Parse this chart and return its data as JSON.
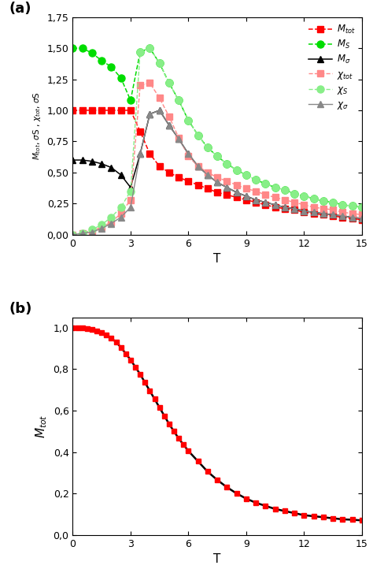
{
  "title_a": "(a)",
  "title_b": "(b)",
  "xlabel": "T",
  "xlim": [
    0,
    15
  ],
  "ylim_a": [
    0,
    1.75
  ],
  "ylim_b": [
    0,
    1.05
  ],
  "yticks_a": [
    0.0,
    0.25,
    0.5,
    0.75,
    1.0,
    1.25,
    1.5,
    1.75
  ],
  "ytick_labels_a": [
    "0,00",
    "0,25",
    "0,50",
    "0,75",
    "1,00",
    "1,25",
    "1,50",
    "1,75"
  ],
  "yticks_b": [
    0.0,
    0.2,
    0.4,
    0.6,
    0.8,
    1.0
  ],
  "ytick_labels_b": [
    "0,0",
    "0,2",
    "0,4",
    "0,6",
    "0,8",
    "1,0"
  ],
  "xticks": [
    0,
    3,
    6,
    9,
    12,
    15
  ],
  "background_color": "#ffffff",
  "M_tot_T": [
    0.0,
    0.5,
    1.0,
    1.5,
    2.0,
    2.5,
    3.0,
    3.5,
    4.0,
    4.5,
    5.0,
    5.5,
    6.0,
    6.5,
    7.0,
    7.5,
    8.0,
    8.5,
    9.0,
    9.5,
    10.0,
    10.5,
    11.0,
    11.5,
    12.0,
    12.5,
    13.0,
    13.5,
    14.0,
    14.5,
    15.0
  ],
  "M_tot_V": [
    1.0,
    1.0,
    1.0,
    1.0,
    1.0,
    1.0,
    1.0,
    0.83,
    0.65,
    0.55,
    0.5,
    0.46,
    0.43,
    0.4,
    0.37,
    0.34,
    0.32,
    0.3,
    0.28,
    0.26,
    0.24,
    0.22,
    0.21,
    0.2,
    0.18,
    0.17,
    0.16,
    0.15,
    0.14,
    0.13,
    0.12
  ],
  "M_S_T": [
    0.0,
    0.5,
    1.0,
    1.5,
    2.0,
    2.5,
    3.0,
    3.5,
    4.0,
    4.5,
    5.0,
    5.5,
    6.0,
    6.5,
    7.0,
    7.5,
    8.0,
    8.5,
    9.0,
    9.5,
    10.0,
    10.5,
    11.0,
    11.5,
    12.0,
    12.5,
    13.0,
    13.5,
    14.0,
    14.5,
    15.0
  ],
  "M_S_V": [
    1.5,
    1.5,
    1.46,
    1.4,
    1.35,
    1.26,
    1.08,
    1.47,
    1.5,
    1.38,
    1.22,
    1.08,
    0.92,
    0.8,
    0.7,
    0.63,
    0.57,
    0.52,
    0.48,
    0.44,
    0.41,
    0.38,
    0.36,
    0.33,
    0.31,
    0.29,
    0.27,
    0.26,
    0.24,
    0.23,
    0.22
  ],
  "M_sigma_T": [
    0.0,
    0.5,
    1.0,
    1.5,
    2.0,
    2.5,
    3.0,
    3.5,
    4.0,
    4.5,
    5.0,
    5.5,
    6.0,
    6.5,
    7.0,
    7.5,
    8.0,
    8.5,
    9.0,
    9.5,
    10.0,
    10.5,
    11.0,
    11.5,
    12.0,
    12.5,
    13.0,
    13.5,
    14.0,
    14.5,
    15.0
  ],
  "M_sigma_V": [
    0.6,
    0.6,
    0.59,
    0.57,
    0.54,
    0.48,
    0.38,
    0.65,
    0.97,
    1.0,
    0.88,
    0.77,
    0.65,
    0.55,
    0.48,
    0.42,
    0.38,
    0.34,
    0.31,
    0.28,
    0.26,
    0.24,
    0.22,
    0.21,
    0.19,
    0.18,
    0.17,
    0.16,
    0.15,
    0.14,
    0.13
  ],
  "chi_tot_T": [
    0.0,
    0.5,
    1.0,
    1.5,
    2.0,
    2.5,
    3.0,
    3.5,
    4.0,
    4.5,
    5.0,
    5.5,
    6.0,
    6.5,
    7.0,
    7.5,
    8.0,
    8.5,
    9.0,
    9.5,
    10.0,
    10.5,
    11.0,
    11.5,
    12.0,
    12.5,
    13.0,
    13.5,
    14.0,
    14.5,
    15.0
  ],
  "chi_tot_V": [
    0.0,
    0.01,
    0.03,
    0.06,
    0.1,
    0.17,
    0.28,
    1.2,
    1.22,
    1.1,
    0.95,
    0.78,
    0.63,
    0.55,
    0.5,
    0.46,
    0.43,
    0.4,
    0.37,
    0.35,
    0.32,
    0.3,
    0.28,
    0.26,
    0.24,
    0.22,
    0.21,
    0.2,
    0.18,
    0.17,
    0.16
  ],
  "chi_S_T": [
    0.0,
    0.5,
    1.0,
    1.5,
    2.0,
    2.5,
    3.0,
    3.5,
    4.0,
    4.5,
    5.0,
    5.5,
    6.0,
    6.5,
    7.0,
    7.5,
    8.0,
    8.5,
    9.0,
    9.5,
    10.0,
    10.5,
    11.0,
    11.5,
    12.0,
    12.5,
    13.0,
    13.5,
    14.0,
    14.5,
    15.0
  ],
  "chi_S_V": [
    0.0,
    0.01,
    0.04,
    0.08,
    0.14,
    0.22,
    0.35,
    1.47,
    1.5,
    1.38,
    1.22,
    1.08,
    0.92,
    0.8,
    0.7,
    0.63,
    0.57,
    0.52,
    0.48,
    0.44,
    0.41,
    0.38,
    0.36,
    0.33,
    0.31,
    0.29,
    0.27,
    0.26,
    0.24,
    0.23,
    0.22
  ],
  "chi_sigma_T": [
    0.0,
    0.5,
    1.0,
    1.5,
    2.0,
    2.5,
    3.0,
    3.5,
    4.0,
    4.5,
    5.0,
    5.5,
    6.0,
    6.5,
    7.0,
    7.5,
    8.0,
    8.5,
    9.0,
    9.5,
    10.0,
    10.5,
    11.0,
    11.5,
    12.0,
    12.5,
    13.0,
    13.5,
    14.0,
    14.5,
    15.0
  ],
  "chi_sigma_V": [
    0.0,
    0.01,
    0.02,
    0.05,
    0.09,
    0.14,
    0.22,
    0.65,
    0.97,
    1.0,
    0.88,
    0.77,
    0.65,
    0.55,
    0.48,
    0.42,
    0.38,
    0.34,
    0.31,
    0.28,
    0.26,
    0.24,
    0.22,
    0.21,
    0.19,
    0.18,
    0.17,
    0.16,
    0.15,
    0.14,
    0.13
  ],
  "M_tot_b_T": [
    0.0,
    0.25,
    0.5,
    0.75,
    1.0,
    1.25,
    1.5,
    1.75,
    2.0,
    2.25,
    2.5,
    2.75,
    3.0,
    3.25,
    3.5,
    3.75,
    4.0,
    4.25,
    4.5,
    4.75,
    5.0,
    5.25,
    5.5,
    5.75,
    6.0,
    6.5,
    7.0,
    7.5,
    8.0,
    8.5,
    9.0,
    9.5,
    10.0,
    10.5,
    11.0,
    11.5,
    12.0,
    12.5,
    13.0,
    13.5,
    14.0,
    14.5,
    15.0
  ],
  "M_tot_b_V": [
    1.0,
    1.0,
    1.0,
    0.995,
    0.99,
    0.985,
    0.975,
    0.965,
    0.95,
    0.93,
    0.905,
    0.875,
    0.845,
    0.81,
    0.775,
    0.735,
    0.695,
    0.655,
    0.615,
    0.575,
    0.535,
    0.5,
    0.465,
    0.435,
    0.405,
    0.355,
    0.305,
    0.265,
    0.23,
    0.2,
    0.175,
    0.155,
    0.14,
    0.125,
    0.115,
    0.105,
    0.095,
    0.09,
    0.085,
    0.08,
    0.075,
    0.073,
    0.07
  ],
  "color_M_tot": "#ff0000",
  "color_M_S": "#00dd00",
  "color_M_sigma": "#000000",
  "color_chi_tot": "#ff8888",
  "color_chi_S": "#88ee88",
  "color_chi_sigma": "#888888",
  "color_M_tot_b_line": "#000000",
  "color_M_tot_b_marker": "#ff0000"
}
